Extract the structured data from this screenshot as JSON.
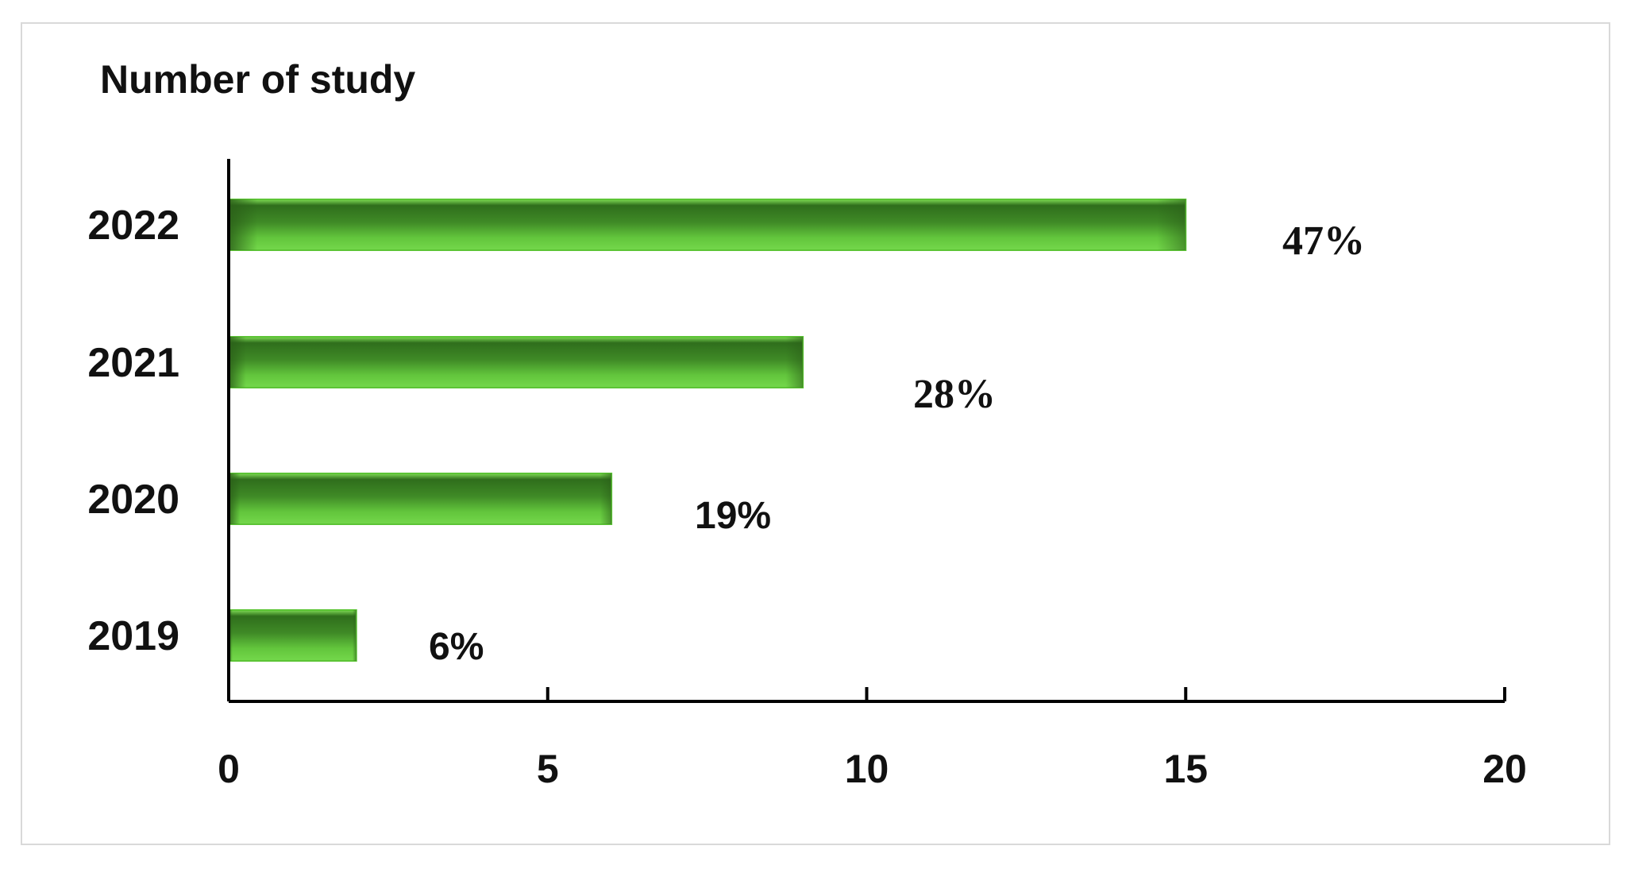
{
  "chart_data": {
    "type": "bar",
    "orientation": "horizontal",
    "title": "Number of study",
    "xlabel": "",
    "ylabel": "",
    "categories": [
      "2019",
      "2020",
      "2021",
      "2022"
    ],
    "values": [
      2,
      6,
      9,
      15
    ],
    "data_labels": [
      "6%",
      "19%",
      "28%",
      "47%"
    ],
    "xlim": [
      0,
      20
    ],
    "xticks": [
      "0",
      "5",
      "10",
      "15",
      "20"
    ],
    "grid": false,
    "legend": "none",
    "colors": {
      "bar_light": "#6ccf45",
      "bar_dark": "#2f6e1c",
      "axis": "#000000",
      "text": "#111111"
    }
  }
}
